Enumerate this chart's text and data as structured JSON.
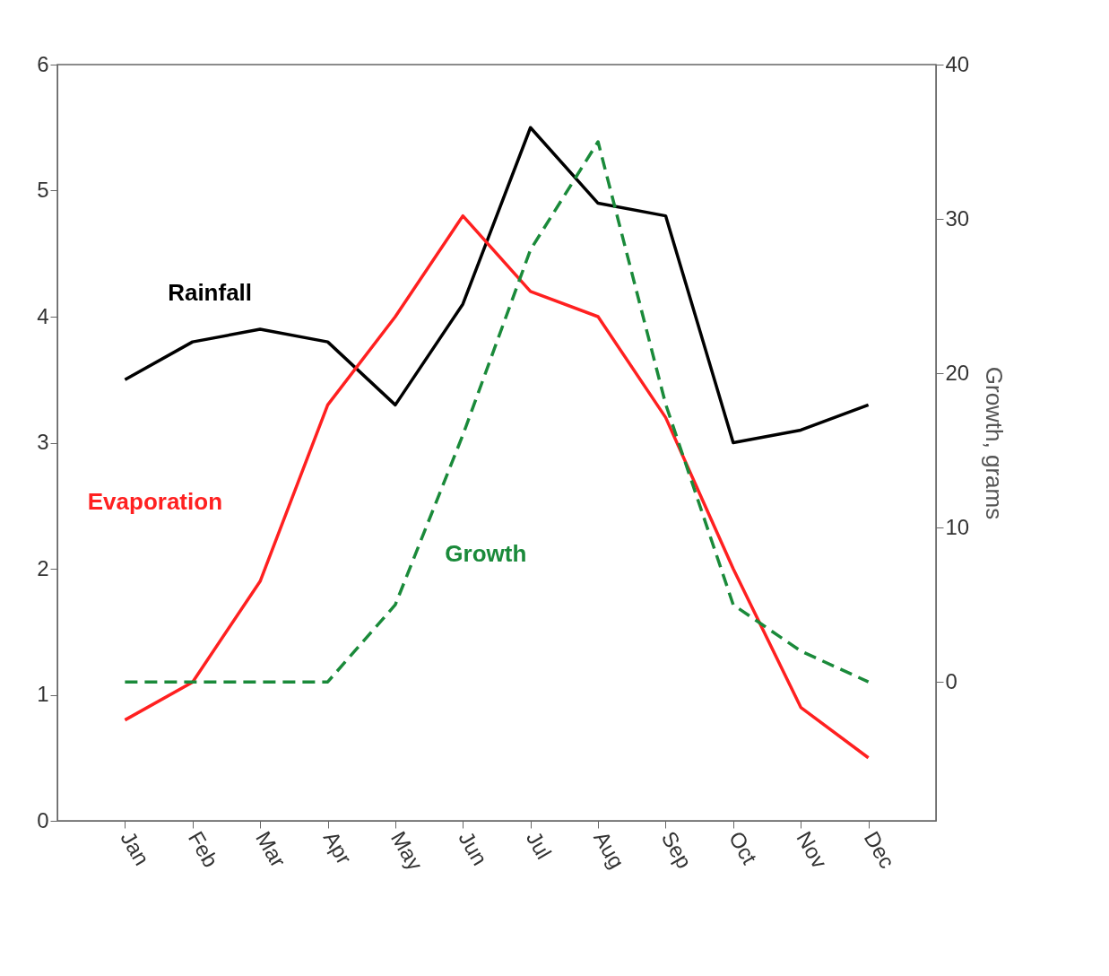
{
  "chart_data": {
    "type": "line",
    "categories": [
      "Jan",
      "Feb",
      "Mar",
      "Apr",
      "May",
      "Jun",
      "Jul",
      "Aug",
      "Sep",
      "Oct",
      "Nov",
      "Dec"
    ],
    "y2label": "Growth, grams",
    "ylim": [
      0,
      6
    ],
    "yticks": [
      0,
      1,
      2,
      3,
      4,
      5,
      6
    ],
    "y2lim": [
      -9,
      40
    ],
    "y2ticks": [
      0,
      10,
      20,
      30,
      40
    ],
    "grid": false,
    "legend": false,
    "marker": "none",
    "series": [
      {
        "name": "Rainfall",
        "color": "#000000",
        "line_style": "solid",
        "values": [
          3.5,
          3.8,
          3.9,
          3.8,
          3.3,
          4.1,
          5.5,
          4.9,
          4.8,
          3.0,
          3.1,
          3.3
        ]
      },
      {
        "name": "Evaporation",
        "color": "#ff2020",
        "line_style": "solid",
        "values": [
          0.8,
          1.1,
          1.9,
          3.3,
          4.0,
          4.8,
          4.2,
          4.0,
          3.2,
          2.0,
          0.9,
          0.5
        ]
      },
      {
        "name": "Growth",
        "color": "#1a8a3a",
        "line_style": "dashed",
        "axis": "y2",
        "values": [
          0,
          0,
          0,
          0,
          5,
          16,
          28,
          35,
          18,
          5,
          2,
          0
        ]
      }
    ]
  }
}
